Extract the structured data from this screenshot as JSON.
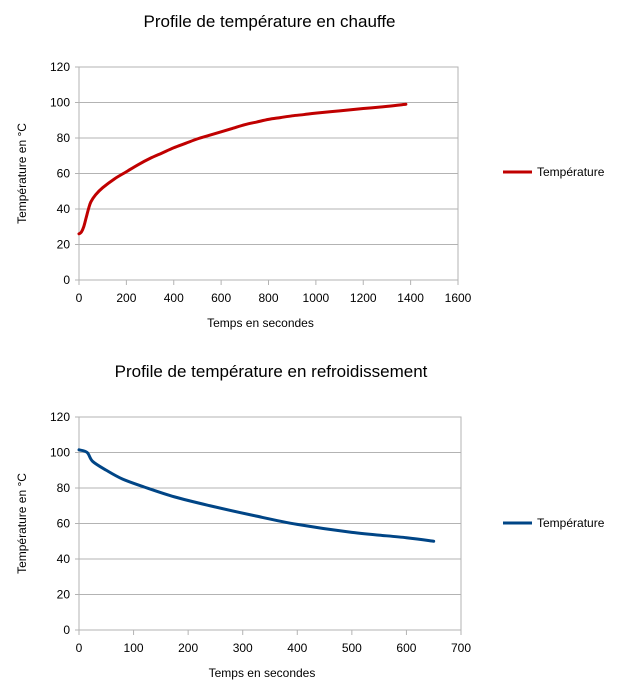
{
  "chart_data": [
    {
      "type": "line",
      "title": "Profile de température en chauffe",
      "xlabel": "Temps en secondes",
      "ylabel": "Température en °C",
      "xlim": [
        0,
        1600
      ],
      "ylim": [
        0,
        120
      ],
      "xticks": [
        0,
        200,
        400,
        600,
        800,
        1000,
        1200,
        1400,
        1600
      ],
      "yticks": [
        0,
        20,
        40,
        60,
        80,
        100,
        120
      ],
      "grid": "horizontal",
      "legend_position": "right",
      "series": [
        {
          "name": "Température",
          "color": "#c00000",
          "points": [
            [
              0,
              26
            ],
            [
              10,
              27
            ],
            [
              20,
              30
            ],
            [
              30,
              35
            ],
            [
              40,
              40
            ],
            [
              50,
              44
            ],
            [
              70,
              48
            ],
            [
              100,
              52
            ],
            [
              150,
              57
            ],
            [
              200,
              61
            ],
            [
              250,
              65
            ],
            [
              300,
              68.5
            ],
            [
              350,
              71.5
            ],
            [
              400,
              74.5
            ],
            [
              450,
              77
            ],
            [
              500,
              79.5
            ],
            [
              550,
              81.5
            ],
            [
              600,
              83.5
            ],
            [
              650,
              85.5
            ],
            [
              700,
              87.5
            ],
            [
              750,
              89
            ],
            [
              800,
              90.5
            ],
            [
              850,
              91.5
            ],
            [
              900,
              92.5
            ],
            [
              950,
              93.2
            ],
            [
              1000,
              94
            ],
            [
              1100,
              95.3
            ],
            [
              1200,
              96.6
            ],
            [
              1300,
              97.8
            ],
            [
              1380,
              99
            ]
          ]
        }
      ]
    },
    {
      "type": "line",
      "title": "Profile de température en refroidissement",
      "xlabel": "Temps en secondes",
      "ylabel": "Température en °C",
      "xlim": [
        0,
        700
      ],
      "ylim": [
        0,
        120
      ],
      "xticks": [
        0,
        100,
        200,
        300,
        400,
        500,
        600,
        700
      ],
      "yticks": [
        0,
        20,
        40,
        60,
        80,
        100,
        120
      ],
      "grid": "horizontal",
      "legend_position": "right",
      "series": [
        {
          "name": "Température",
          "color": "#004586",
          "points": [
            [
              0,
              101.5
            ],
            [
              15,
              100
            ],
            [
              25,
              95
            ],
            [
              50,
              90
            ],
            [
              80,
              85
            ],
            [
              120,
              80.5
            ],
            [
              175,
              75
            ],
            [
              240,
              70
            ],
            [
              320,
              64.5
            ],
            [
              400,
              59.5
            ],
            [
              500,
              55
            ],
            [
              600,
              52
            ],
            [
              650,
              50
            ]
          ]
        }
      ]
    }
  ]
}
